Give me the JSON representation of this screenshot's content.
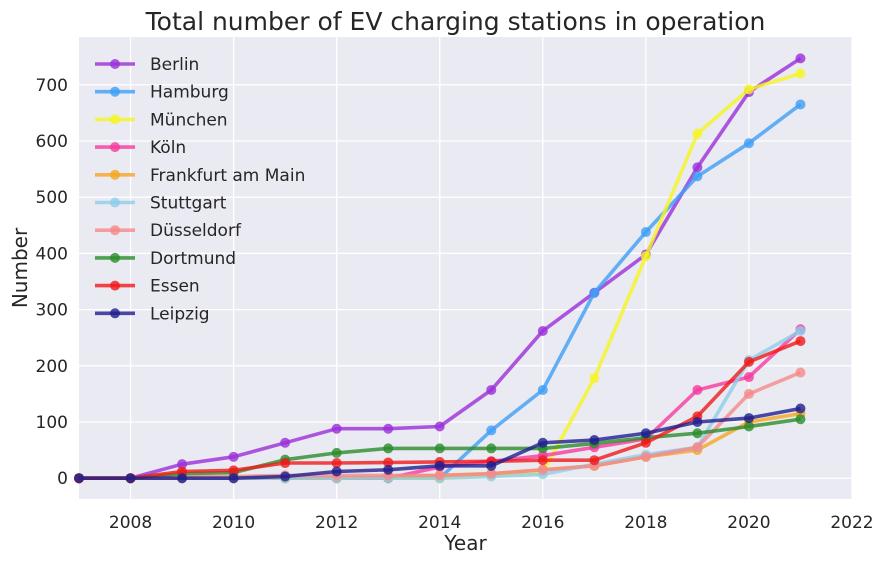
{
  "chart_data": {
    "type": "line",
    "title": "Total number of EV charging stations in operation",
    "xlabel": "Year",
    "ylabel": "Number",
    "xlim": [
      2007,
      2022
    ],
    "ylim": [
      -37,
      785
    ],
    "x_ticks": [
      2008,
      2010,
      2012,
      2014,
      2016,
      2018,
      2020,
      2022
    ],
    "y_ticks": [
      0,
      100,
      200,
      300,
      400,
      500,
      600,
      700
    ],
    "grid": true,
    "legend_position": "top-left",
    "background": "#eaeaf2",
    "series": [
      {
        "name": "Berlin",
        "color": "#9b30d9",
        "points": [
          [
            2007,
            0
          ],
          [
            2008,
            0
          ],
          [
            2009,
            25
          ],
          [
            2010,
            38
          ],
          [
            2011,
            63
          ],
          [
            2012,
            88
          ],
          [
            2013,
            88
          ],
          [
            2014,
            92
          ],
          [
            2015,
            157
          ],
          [
            2016,
            262
          ],
          [
            2017,
            330
          ],
          [
            2018,
            398
          ],
          [
            2019,
            553
          ],
          [
            2020,
            687
          ],
          [
            2021,
            747
          ]
        ]
      },
      {
        "name": "Hamburg",
        "color": "#3f9ff5",
        "points": [
          [
            2007,
            0
          ],
          [
            2008,
            0
          ],
          [
            2009,
            0
          ],
          [
            2010,
            0
          ],
          [
            2011,
            0
          ],
          [
            2012,
            0
          ],
          [
            2013,
            0
          ],
          [
            2014,
            0
          ],
          [
            2015,
            85
          ],
          [
            2016,
            157
          ],
          [
            2017,
            330
          ],
          [
            2018,
            438
          ],
          [
            2019,
            537
          ],
          [
            2020,
            596
          ],
          [
            2021,
            665
          ]
        ]
      },
      {
        "name": "München",
        "color": "#f5f522",
        "points": [
          [
            2007,
            0
          ],
          [
            2008,
            0
          ],
          [
            2009,
            0
          ],
          [
            2010,
            0
          ],
          [
            2011,
            0
          ],
          [
            2012,
            0
          ],
          [
            2013,
            0
          ],
          [
            2014,
            0
          ],
          [
            2015,
            5
          ],
          [
            2016,
            10
          ],
          [
            2017,
            178
          ],
          [
            2018,
            395
          ],
          [
            2019,
            613
          ],
          [
            2020,
            692
          ],
          [
            2021,
            720
          ]
        ]
      },
      {
        "name": "Köln",
        "color": "#f73a9e",
        "points": [
          [
            2007,
            0
          ],
          [
            2008,
            0
          ],
          [
            2009,
            0
          ],
          [
            2010,
            0
          ],
          [
            2011,
            0
          ],
          [
            2012,
            0
          ],
          [
            2013,
            0
          ],
          [
            2014,
            20
          ],
          [
            2015,
            30
          ],
          [
            2016,
            40
          ],
          [
            2017,
            55
          ],
          [
            2018,
            70
          ],
          [
            2019,
            157
          ],
          [
            2020,
            180
          ],
          [
            2021,
            265
          ]
        ]
      },
      {
        "name": "Frankfurt am Main",
        "color": "#f5a623",
        "points": [
          [
            2007,
            0
          ],
          [
            2008,
            0
          ],
          [
            2009,
            0
          ],
          [
            2010,
            0
          ],
          [
            2011,
            0
          ],
          [
            2012,
            0
          ],
          [
            2013,
            2
          ],
          [
            2014,
            5
          ],
          [
            2015,
            8
          ],
          [
            2016,
            15
          ],
          [
            2017,
            22
          ],
          [
            2018,
            38
          ],
          [
            2019,
            50
          ],
          [
            2020,
            100
          ],
          [
            2021,
            115
          ]
        ]
      },
      {
        "name": "Stuttgart",
        "color": "#8fcde8",
        "points": [
          [
            2007,
            0
          ],
          [
            2008,
            0
          ],
          [
            2009,
            0
          ],
          [
            2010,
            0
          ],
          [
            2011,
            0
          ],
          [
            2012,
            0
          ],
          [
            2013,
            0
          ],
          [
            2014,
            0
          ],
          [
            2015,
            3
          ],
          [
            2016,
            7
          ],
          [
            2017,
            25
          ],
          [
            2018,
            42
          ],
          [
            2019,
            55
          ],
          [
            2020,
            210
          ],
          [
            2021,
            262
          ]
        ]
      },
      {
        "name": "Düsseldorf",
        "color": "#f58a8a",
        "points": [
          [
            2007,
            0
          ],
          [
            2008,
            0
          ],
          [
            2009,
            2
          ],
          [
            2010,
            3
          ],
          [
            2011,
            5
          ],
          [
            2012,
            5
          ],
          [
            2013,
            5
          ],
          [
            2014,
            5
          ],
          [
            2015,
            8
          ],
          [
            2016,
            15
          ],
          [
            2017,
            22
          ],
          [
            2018,
            38
          ],
          [
            2019,
            55
          ],
          [
            2020,
            150
          ],
          [
            2021,
            188
          ]
        ]
      },
      {
        "name": "Dortmund",
        "color": "#2a8c2a",
        "points": [
          [
            2007,
            0
          ],
          [
            2008,
            0
          ],
          [
            2009,
            8
          ],
          [
            2010,
            10
          ],
          [
            2011,
            33
          ],
          [
            2012,
            45
          ],
          [
            2013,
            53
          ],
          [
            2014,
            53
          ],
          [
            2015,
            53
          ],
          [
            2016,
            53
          ],
          [
            2017,
            62
          ],
          [
            2018,
            72
          ],
          [
            2019,
            80
          ],
          [
            2020,
            92
          ],
          [
            2021,
            105
          ]
        ]
      },
      {
        "name": "Essen",
        "color": "#f01a1a",
        "points": [
          [
            2007,
            0
          ],
          [
            2008,
            0
          ],
          [
            2009,
            12
          ],
          [
            2010,
            14
          ],
          [
            2011,
            27
          ],
          [
            2012,
            27
          ],
          [
            2013,
            28
          ],
          [
            2014,
            29
          ],
          [
            2015,
            30
          ],
          [
            2016,
            32
          ],
          [
            2017,
            32
          ],
          [
            2018,
            63
          ],
          [
            2019,
            110
          ],
          [
            2020,
            207
          ],
          [
            2021,
            244
          ]
        ]
      },
      {
        "name": "Leipzig",
        "color": "#1f1f8f",
        "points": [
          [
            2007,
            0
          ],
          [
            2008,
            0
          ],
          [
            2009,
            0
          ],
          [
            2010,
            0
          ],
          [
            2011,
            3
          ],
          [
            2012,
            12
          ],
          [
            2013,
            15
          ],
          [
            2014,
            22
          ],
          [
            2015,
            22
          ],
          [
            2016,
            63
          ],
          [
            2017,
            68
          ],
          [
            2018,
            80
          ],
          [
            2019,
            100
          ],
          [
            2020,
            107
          ],
          [
            2021,
            124
          ]
        ]
      }
    ]
  }
}
